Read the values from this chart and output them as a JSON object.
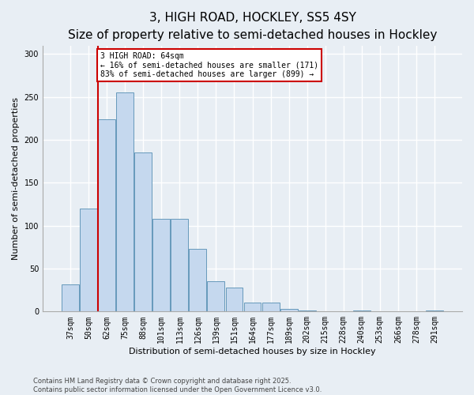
{
  "title1": "3, HIGH ROAD, HOCKLEY, SS5 4SY",
  "title2": "Size of property relative to semi-detached houses in Hockley",
  "xlabel": "Distribution of semi-detached houses by size in Hockley",
  "ylabel": "Number of semi-detached properties",
  "categories": [
    "37sqm",
    "50sqm",
    "62sqm",
    "75sqm",
    "88sqm",
    "101sqm",
    "113sqm",
    "126sqm",
    "139sqm",
    "151sqm",
    "164sqm",
    "177sqm",
    "189sqm",
    "202sqm",
    "215sqm",
    "228sqm",
    "240sqm",
    "253sqm",
    "266sqm",
    "278sqm",
    "291sqm"
  ],
  "values": [
    32,
    120,
    224,
    255,
    185,
    108,
    108,
    73,
    35,
    28,
    10,
    10,
    3,
    1,
    0,
    0,
    1,
    0,
    0,
    0,
    1
  ],
  "bar_color": "#c5d8ee",
  "bar_edge_color": "#6699bb",
  "vline_x": 1.5,
  "vline_color": "#cc0000",
  "annotation_text": "3 HIGH ROAD: 64sqm\n← 16% of semi-detached houses are smaller (171)\n83% of semi-detached houses are larger (899) →",
  "annotation_box_color": "#ffffff",
  "annotation_box_edge": "#cc0000",
  "ylim": [
    0,
    310
  ],
  "yticks": [
    0,
    50,
    100,
    150,
    200,
    250,
    300
  ],
  "footer1": "Contains HM Land Registry data © Crown copyright and database right 2025.",
  "footer2": "Contains public sector information licensed under the Open Government Licence v3.0.",
  "bg_color": "#e8eef4",
  "plot_bg_color": "#e8eef4",
  "grid_color": "#ffffff",
  "title1_fontsize": 11,
  "title2_fontsize": 9,
  "xlabel_fontsize": 8,
  "ylabel_fontsize": 8,
  "tick_fontsize": 7,
  "annotation_fontsize": 7,
  "footer_fontsize": 6
}
